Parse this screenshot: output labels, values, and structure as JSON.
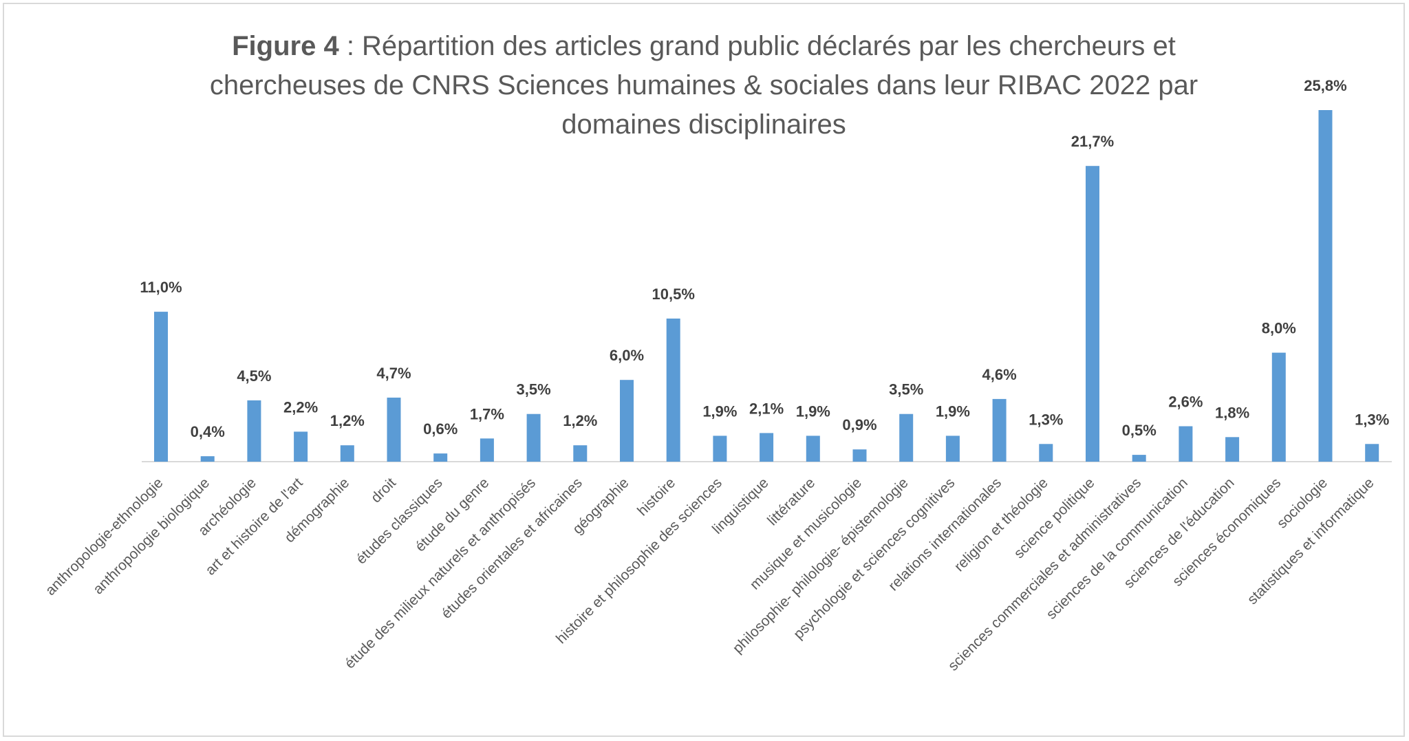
{
  "chart_data": {
    "type": "bar",
    "title_bold": "Figure 4",
    "title_lines": [
      " : Répartition des articles grand public déclarés par les chercheurs et",
      "chercheuses de CNRS Sciences humaines & sociales dans leur RIBAC 2022  par",
      "domaines disciplinaires"
    ],
    "categories": [
      "anthropologie-ethnologie",
      "anthropologie biologique",
      "archéologie",
      "art et histoire de l'art",
      "démographie",
      "droit",
      "études classiques",
      "étude du genre",
      "étude des milieux naturels et anthropisés",
      "études orientales et africaines",
      "géographie",
      "histoire",
      "histoire et philosophie des sciences",
      "linguistique",
      "littérature",
      "musique et musicologie",
      "philosophie- philologie- épistemologie",
      "psychologie et sciences cognitives",
      "relations internationales",
      "religion et théologie",
      "science politique",
      "sciences commerciales et administratives",
      "sciences de la communication",
      "sciences de l'éducation",
      "sciences économiques",
      "sociologie",
      "statistiques et informatique"
    ],
    "values": [
      11.0,
      0.4,
      4.5,
      2.2,
      1.2,
      4.7,
      0.6,
      1.7,
      3.5,
      1.2,
      6.0,
      10.5,
      1.9,
      2.1,
      1.9,
      0.9,
      3.5,
      1.9,
      4.6,
      1.3,
      21.7,
      0.5,
      2.6,
      1.8,
      8.0,
      25.8,
      1.3
    ],
    "labels": [
      "11,0%",
      "0,4%",
      "4,5%",
      "2,2%",
      "1,2%",
      "4,7%",
      "0,6%",
      "1,7%",
      "3,5%",
      "1,2%",
      "6,0%",
      "10,5%",
      "1,9%",
      "2,1%",
      "1,9%",
      "0,9%",
      "3,5%",
      "1,9%",
      "4,6%",
      "1,3%",
      "21,7%",
      "0,5%",
      "2,6%",
      "1,8%",
      "8,0%",
      "25,8%",
      "1,3%"
    ],
    "ylim": [
      0,
      25.8
    ],
    "colors": {
      "bar": "#5b9bd5"
    },
    "grid": false,
    "legend": false
  }
}
